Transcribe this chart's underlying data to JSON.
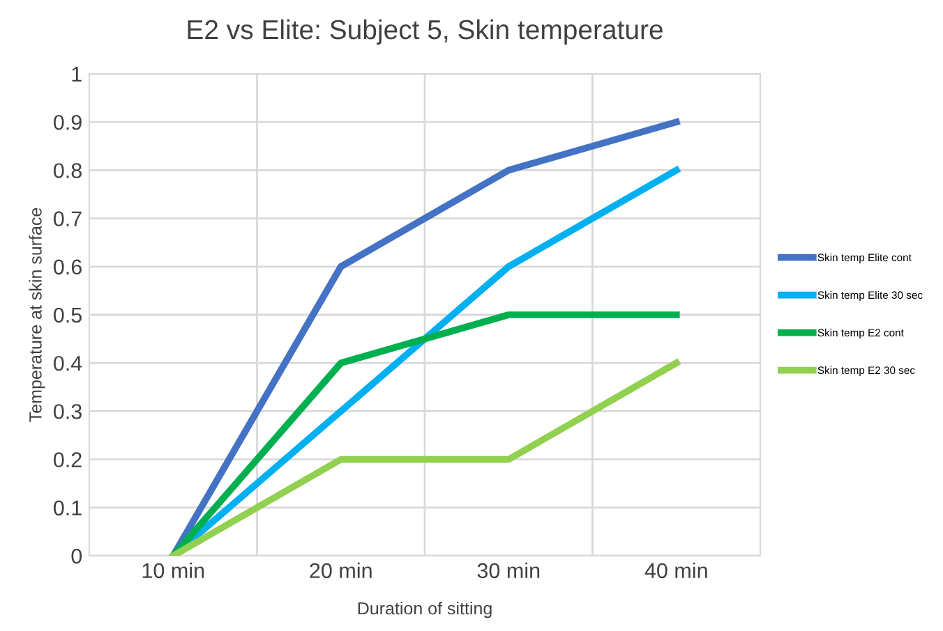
{
  "chart_data": {
    "type": "line",
    "title": "E2 vs Elite: Subject 5, Skin temperature",
    "xlabel": "Duration of sitting",
    "ylabel": "Temperature at skin surface",
    "categories": [
      "10 min",
      "20 min",
      "30 min",
      "40 min"
    ],
    "series": [
      {
        "name": "Skin temp Elite cont",
        "color": "#4472c4",
        "values": [
          0,
          0.6,
          0.8,
          0.9
        ]
      },
      {
        "name": "Skin temp Elite 30 sec",
        "color": "#00b0f0",
        "values": [
          0,
          0.3,
          0.6,
          0.8
        ]
      },
      {
        "name": "Skin temp E2 cont",
        "color": "#00b050",
        "values": [
          0,
          0.4,
          0.5,
          0.5
        ]
      },
      {
        "name": "Skin temp E2 30 sec",
        "color": "#92d050",
        "values": [
          0,
          0.2,
          0.2,
          0.4
        ]
      }
    ],
    "ylim": [
      0,
      1
    ],
    "yticks": [
      0,
      0.1,
      0.2,
      0.3,
      0.4,
      0.5,
      0.6,
      0.7,
      0.8,
      0.9,
      1
    ],
    "grid": true,
    "legend": "right",
    "marker": "none",
    "line_style": "solid"
  }
}
